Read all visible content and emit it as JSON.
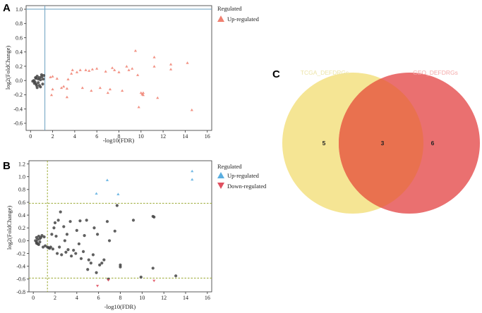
{
  "panel_labels": {
    "a": "A",
    "b": "B",
    "c": "C"
  },
  "colors": {
    "up": "#f08070",
    "up_b": "#5aaee0",
    "down": "#e05060",
    "ns": "#444444",
    "hline_a": "#6a9fbf",
    "threshold_b": "#9aa832",
    "venn_left": "#f5e594",
    "venn_right": "#ea7070",
    "venn_overlap": "#e9714f",
    "venn_left_label": "#ece4a8",
    "venn_right_label": "#f4a8a8"
  },
  "chart_data": [
    {
      "id": "A",
      "type": "scatter",
      "xlabel": "-log10(FDR)",
      "ylabel": "log2(FoldChange)",
      "xlim": [
        -0.4,
        16.4
      ],
      "ylim": [
        -0.7,
        1.05
      ],
      "xticks": [
        "0",
        "2",
        "4",
        "6",
        "8",
        "10",
        "12",
        "14",
        "16"
      ],
      "yticks": [
        "-0.6",
        "-0.4",
        "-0.2",
        "0.0",
        "0.2",
        "0.4",
        "0.6",
        "0.8",
        "1.0"
      ],
      "vline": 1.3,
      "hline": 1.0,
      "legend": {
        "title": "Regulated",
        "items": [
          {
            "label": "Up-regulated",
            "marker": "triangle-up",
            "color_key": "up"
          }
        ]
      },
      "ns_points": [
        [
          0.3,
          0.0
        ],
        [
          0.4,
          -0.02
        ],
        [
          0.5,
          0.03
        ],
        [
          0.5,
          -0.05
        ],
        [
          0.6,
          0.06
        ],
        [
          0.7,
          -0.03
        ],
        [
          0.7,
          0.02
        ],
        [
          0.8,
          -0.07
        ],
        [
          0.9,
          0.01
        ],
        [
          0.9,
          -0.09
        ],
        [
          1.0,
          0.05
        ],
        [
          1.0,
          0.08
        ],
        [
          1.1,
          -0.05
        ],
        [
          1.2,
          0.07
        ],
        [
          0.2,
          -0.01
        ],
        [
          0.35,
          -0.04
        ],
        [
          0.6,
          -0.1
        ],
        [
          0.45,
          0.04
        ],
        [
          0.8,
          0.04
        ],
        [
          1.15,
          0.02
        ],
        [
          0.55,
          -0.07
        ]
      ],
      "up_points": [
        [
          1.8,
          0.05
        ],
        [
          1.9,
          -0.2
        ],
        [
          2.0,
          0.06
        ],
        [
          2.4,
          0.03
        ],
        [
          2.0,
          -0.12
        ],
        [
          2.8,
          -0.1
        ],
        [
          3.0,
          -0.08
        ],
        [
          3.3,
          -0.23
        ],
        [
          3.3,
          -0.11
        ],
        [
          3.4,
          0.02
        ],
        [
          3.7,
          0.1
        ],
        [
          3.8,
          0.15
        ],
        [
          4.2,
          0.12
        ],
        [
          4.5,
          0.15
        ],
        [
          4.7,
          -0.1
        ],
        [
          5.0,
          0.15
        ],
        [
          5.3,
          0.14
        ],
        [
          5.6,
          0.16
        ],
        [
          5.5,
          -0.14
        ],
        [
          6.0,
          0.17
        ],
        [
          6.3,
          -0.1
        ],
        [
          6.8,
          0.13
        ],
        [
          7.0,
          -0.17
        ],
        [
          7.2,
          -0.12
        ],
        [
          7.4,
          0.18
        ],
        [
          7.6,
          0.15
        ],
        [
          8.0,
          0.12
        ],
        [
          8.3,
          -0.14
        ],
        [
          8.7,
          0.2
        ],
        [
          8.9,
          0.15
        ],
        [
          9.2,
          0.17
        ],
        [
          9.5,
          0.42
        ],
        [
          9.8,
          -0.37
        ],
        [
          10.0,
          -0.17
        ],
        [
          10.1,
          -0.19
        ],
        [
          10.2,
          -0.2
        ],
        [
          10.2,
          -0.17
        ],
        [
          11.2,
          0.33
        ],
        [
          11.2,
          0.2
        ],
        [
          11.5,
          -0.24
        ],
        [
          12.7,
          0.23
        ],
        [
          12.7,
          0.16
        ],
        [
          14.2,
          0.25
        ],
        [
          14.6,
          -0.41
        ],
        [
          9.7,
          0.08
        ]
      ]
    },
    {
      "id": "B",
      "type": "scatter",
      "xlabel": "-log10(FDR)",
      "ylabel": "log2(FoldChange)",
      "xlim": [
        -0.4,
        16.4
      ],
      "ylim": [
        -0.8,
        1.25
      ],
      "xticks": [
        "0",
        "2",
        "4",
        "6",
        "8",
        "10",
        "12",
        "14",
        "16"
      ],
      "yticks": [
        "-0.8",
        "-0.6",
        "-0.4",
        "-0.2",
        "0.0",
        "0.2",
        "0.4",
        "0.6",
        "0.8",
        "1.0",
        "1.2"
      ],
      "vline": 1.3,
      "hlines": [
        0.585,
        -0.585
      ],
      "legend": {
        "title": "Regulated",
        "items": [
          {
            "label": "Up-regulated",
            "marker": "triangle-up",
            "color_key": "up_b"
          },
          {
            "label": "Down-regulated",
            "marker": "triangle-down",
            "color_key": "down"
          }
        ]
      },
      "ns_points": [
        [
          0.2,
          0.0
        ],
        [
          0.3,
          0.05
        ],
        [
          0.3,
          -0.04
        ],
        [
          0.4,
          0.02
        ],
        [
          0.5,
          -0.06
        ],
        [
          0.5,
          0.07
        ],
        [
          0.6,
          -0.02
        ],
        [
          0.7,
          0.05
        ],
        [
          0.8,
          0.08
        ],
        [
          0.3,
          -0.02
        ],
        [
          0.4,
          -0.05
        ],
        [
          0.6,
          0.03
        ],
        [
          0.9,
          -0.1
        ],
        [
          1.0,
          0.06
        ],
        [
          1.1,
          -0.08
        ],
        [
          1.3,
          -0.1
        ],
        [
          1.4,
          -0.11
        ],
        [
          1.5,
          -0.12
        ],
        [
          1.6,
          -0.1
        ],
        [
          1.8,
          -0.13
        ],
        [
          1.7,
          0.1
        ],
        [
          1.9,
          0.2
        ],
        [
          2.0,
          0.28
        ],
        [
          2.1,
          0.07
        ],
        [
          2.2,
          -0.2
        ],
        [
          2.3,
          0.32
        ],
        [
          2.5,
          0.45
        ],
        [
          2.4,
          -0.1
        ],
        [
          2.6,
          -0.22
        ],
        [
          2.8,
          0.22
        ],
        [
          3.0,
          -0.18
        ],
        [
          3.2,
          -0.14
        ],
        [
          3.1,
          0.1
        ],
        [
          3.4,
          0.3
        ],
        [
          3.5,
          -0.24
        ],
        [
          3.7,
          -0.15
        ],
        [
          3.9,
          -0.2
        ],
        [
          4.0,
          0.16
        ],
        [
          4.2,
          -0.05
        ],
        [
          4.3,
          0.31
        ],
        [
          4.4,
          -0.28
        ],
        [
          4.6,
          -0.17
        ],
        [
          4.7,
          0.08
        ],
        [
          4.9,
          0.32
        ],
        [
          5.0,
          -0.45
        ],
        [
          5.1,
          -0.3
        ],
        [
          5.3,
          -0.35
        ],
        [
          5.5,
          -0.22
        ],
        [
          5.6,
          0.2
        ],
        [
          5.8,
          -0.5
        ],
        [
          5.9,
          0.1
        ],
        [
          6.1,
          -0.38
        ],
        [
          6.3,
          -0.35
        ],
        [
          6.5,
          -0.3
        ],
        [
          6.8,
          0.3
        ],
        [
          6.9,
          -0.6
        ],
        [
          7.0,
          0.0
        ],
        [
          7.5,
          0.15
        ],
        [
          7.7,
          0.55
        ],
        [
          8.0,
          -0.38
        ],
        [
          8.0,
          -0.41
        ],
        [
          9.2,
          0.32
        ],
        [
          9.9,
          -0.57
        ],
        [
          11.0,
          0.38
        ],
        [
          11.1,
          0.37
        ],
        [
          11.0,
          -0.43
        ],
        [
          13.1,
          -0.55
        ],
        [
          2.9,
          0.0
        ]
      ],
      "up_points": [
        [
          5.8,
          0.74
        ],
        [
          6.8,
          0.95
        ],
        [
          7.8,
          0.73
        ],
        [
          14.6,
          1.09
        ],
        [
          14.6,
          0.96
        ]
      ],
      "down_points": [
        [
          5.9,
          -0.71
        ],
        [
          6.9,
          -0.62
        ],
        [
          11.1,
          -0.63
        ]
      ]
    }
  ],
  "venn": {
    "left_label": "TCGA_DEFDRGs",
    "right_label": "GEO_DEFDRGs",
    "left_only": "5",
    "overlap": "3",
    "right_only": "6"
  }
}
